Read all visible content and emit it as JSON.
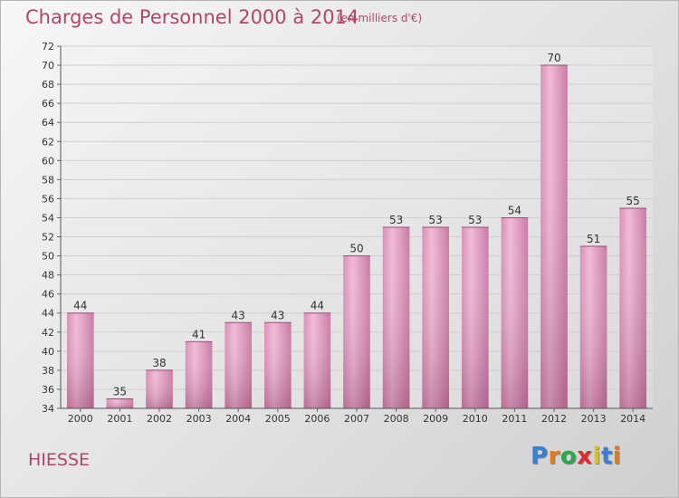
{
  "header": {
    "title": "Charges de Personnel 2000 à 2014",
    "subtitle": "(en milliers d'€)"
  },
  "footer": {
    "commune": "HIESSE",
    "logo": "Proxiti",
    "logo_colors": [
      "#3a7fd0",
      "#e07a1a",
      "#2ba84a",
      "#e02a2a",
      "#d4c22a",
      "#3a7fd0",
      "#e07a1a"
    ]
  },
  "chart_data": {
    "type": "bar",
    "title": "Charges de Personnel 2000 à 2014",
    "subtitle": "(en milliers d'€)",
    "xlabel": "",
    "ylabel": "",
    "categories": [
      "2000",
      "2001",
      "2002",
      "2003",
      "2004",
      "2005",
      "2006",
      "2007",
      "2008",
      "2009",
      "2010",
      "2011",
      "2012",
      "2013",
      "2014"
    ],
    "values": [
      44,
      35,
      38,
      41,
      43,
      43,
      44,
      50,
      53,
      53,
      53,
      54,
      70,
      51,
      55
    ],
    "ylim": [
      34,
      72
    ],
    "yticks": [
      34,
      36,
      38,
      40,
      42,
      44,
      46,
      48,
      50,
      52,
      54,
      56,
      58,
      60,
      62,
      64,
      66,
      68,
      70,
      72
    ],
    "grid": true,
    "legend": "none",
    "bar_color": "#c06a97"
  }
}
